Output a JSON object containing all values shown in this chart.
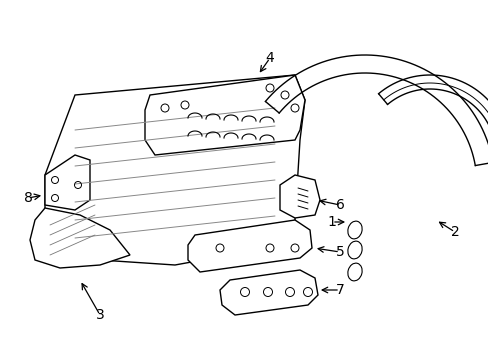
{
  "bg_color": "#ffffff",
  "line_color": "#000000",
  "lw": 1.0,
  "fig_width": 4.89,
  "fig_height": 3.6,
  "dpi": 100,
  "font_size": 10
}
